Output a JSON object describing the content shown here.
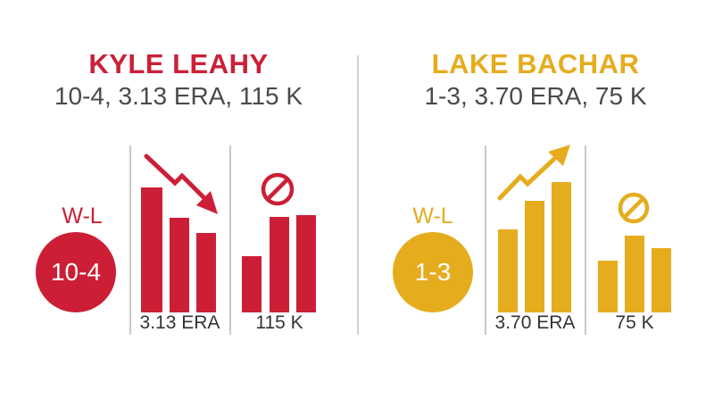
{
  "players": [
    {
      "name": "KYLE LEAHY",
      "stat_line": "10-4, 3.13 ERA, 115 K",
      "wl_label": "W-L",
      "record": "10-4",
      "era_label": "3.13 ERA",
      "k_label": "115 K",
      "color": "#cc1f36",
      "trend_icon": "trend-down-arrow-icon",
      "k_icon": "prohibited-icon"
    },
    {
      "name": "LAKE BACHAR",
      "stat_line": "1-3, 3.70 ERA, 75 K",
      "wl_label": "W-L",
      "record": "1-3",
      "era_label": "3.70 ERA",
      "k_label": "75 K",
      "color": "#e5ac1e",
      "trend_icon": "trend-up-arrow-icon",
      "k_icon": "prohibited-icon"
    }
  ]
}
